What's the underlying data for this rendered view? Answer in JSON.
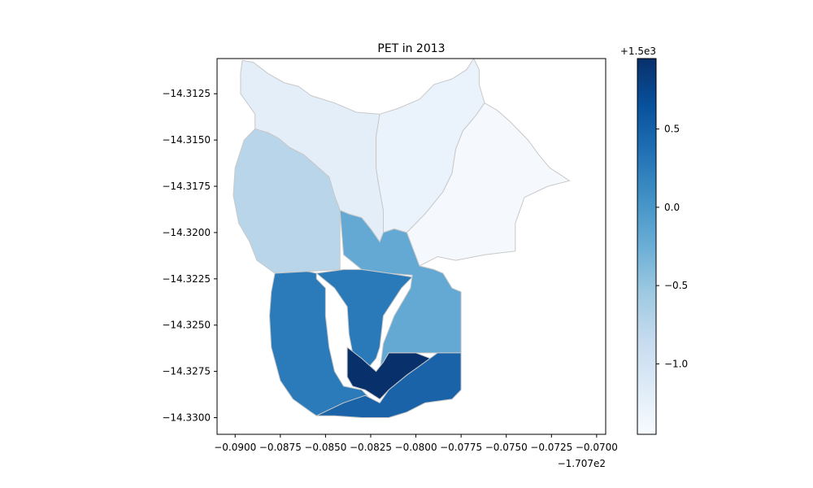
{
  "chart_data": {
    "type": "choropleth",
    "title": "PET in 2013",
    "xlabel": "",
    "ylabel": "",
    "x_offset_label": "−1.707e2",
    "colorbar_offset_label": "+1.5e3",
    "xlim": [
      -0.091,
      -0.0695
    ],
    "ylim": [
      -14.3309,
      -14.3106
    ],
    "x_ticks": [
      -0.09,
      -0.0875,
      -0.085,
      -0.0825,
      -0.08,
      -0.0775,
      -0.075,
      -0.0725,
      -0.07
    ],
    "x_tick_labels": [
      "−0.0900",
      "−0.0875",
      "−0.0850",
      "−0.0825",
      "−0.0800",
      "−0.0775",
      "−0.0750",
      "−0.0725",
      "−0.0700"
    ],
    "y_ticks": [
      -14.3125,
      -14.315,
      -14.3175,
      -14.32,
      -14.3225,
      -14.325,
      -14.3275,
      -14.33
    ],
    "y_tick_labels": [
      "−14.3125",
      "−14.3150",
      "−14.3175",
      "−14.3200",
      "−14.3225",
      "−14.3250",
      "−14.3275",
      "−14.3300"
    ],
    "colorbar": {
      "colormap": "Blues",
      "range": [
        -1.45,
        0.95
      ],
      "ticks": [
        0.5,
        0.0,
        -0.5,
        -1.0
      ],
      "tick_labels": [
        "0.5",
        "0.0",
        "−0.5",
        "−1.0"
      ]
    },
    "regions": [
      {
        "value": -1.25,
        "color": "#e3eef9",
        "boundary": [
          [
            -0.0896,
            -14.3107
          ],
          [
            -0.089,
            -14.3108
          ],
          [
            -0.0882,
            -14.3114
          ],
          [
            -0.0873,
            -14.3119
          ],
          [
            -0.0865,
            -14.3121
          ],
          [
            -0.0858,
            -14.3126
          ],
          [
            -0.0845,
            -14.313
          ],
          [
            -0.0833,
            -14.3135
          ],
          [
            -0.082,
            -14.3136
          ],
          [
            -0.0822,
            -14.3148
          ],
          [
            -0.0822,
            -14.3165
          ],
          [
            -0.0821,
            -14.3172
          ],
          [
            -0.0818,
            -14.3188
          ],
          [
            -0.0818,
            -14.32
          ],
          [
            -0.082,
            -14.3205
          ],
          [
            -0.0825,
            -14.3198
          ],
          [
            -0.083,
            -14.3192
          ],
          [
            -0.0837,
            -14.319
          ],
          [
            -0.0842,
            -14.3188
          ],
          [
            -0.0845,
            -14.318
          ],
          [
            -0.0848,
            -14.317
          ],
          [
            -0.0855,
            -14.3164
          ],
          [
            -0.0862,
            -14.3158
          ],
          [
            -0.087,
            -14.3154
          ],
          [
            -0.0876,
            -14.3149
          ],
          [
            -0.0882,
            -14.3146
          ],
          [
            -0.0889,
            -14.3144
          ],
          [
            -0.0889,
            -14.3136
          ],
          [
            -0.0897,
            -14.3125
          ],
          [
            -0.0897,
            -14.3114
          ]
        ]
      },
      {
        "value": -1.33,
        "color": "#eaf2fb",
        "boundary": [
          [
            -0.082,
            -14.3136
          ],
          [
            -0.081,
            -14.3133
          ],
          [
            -0.0798,
            -14.3128
          ],
          [
            -0.079,
            -14.312
          ],
          [
            -0.078,
            -14.3117
          ],
          [
            -0.0772,
            -14.3112
          ],
          [
            -0.0768,
            -14.3106
          ],
          [
            -0.0765,
            -14.3112
          ],
          [
            -0.0765,
            -14.312
          ],
          [
            -0.0762,
            -14.313
          ],
          [
            -0.0767,
            -14.3137
          ],
          [
            -0.0774,
            -14.3145
          ],
          [
            -0.0778,
            -14.3155
          ],
          [
            -0.078,
            -14.3168
          ],
          [
            -0.0785,
            -14.3178
          ],
          [
            -0.0795,
            -14.319
          ],
          [
            -0.0805,
            -14.32
          ],
          [
            -0.0812,
            -14.3198
          ],
          [
            -0.0818,
            -14.32
          ],
          [
            -0.0818,
            -14.3188
          ],
          [
            -0.0821,
            -14.3172
          ],
          [
            -0.0822,
            -14.3165
          ],
          [
            -0.0822,
            -14.3148
          ]
        ]
      },
      {
        "value": -1.42,
        "color": "#f5f9fe",
        "boundary": [
          [
            -0.0762,
            -14.313
          ],
          [
            -0.0755,
            -14.3134
          ],
          [
            -0.0748,
            -14.314
          ],
          [
            -0.0738,
            -14.315
          ],
          [
            -0.0732,
            -14.3158
          ],
          [
            -0.0726,
            -14.3165
          ],
          [
            -0.0715,
            -14.3172
          ],
          [
            -0.0727,
            -14.3175
          ],
          [
            -0.074,
            -14.3181
          ],
          [
            -0.0745,
            -14.3195
          ],
          [
            -0.0745,
            -14.321
          ],
          [
            -0.0762,
            -14.3212
          ],
          [
            -0.0778,
            -14.3215
          ],
          [
            -0.0788,
            -14.3213
          ],
          [
            -0.0798,
            -14.3218
          ],
          [
            -0.0805,
            -14.32
          ],
          [
            -0.0795,
            -14.319
          ],
          [
            -0.0785,
            -14.3178
          ],
          [
            -0.078,
            -14.3168
          ],
          [
            -0.0778,
            -14.3155
          ],
          [
            -0.0774,
            -14.3145
          ],
          [
            -0.0767,
            -14.3137
          ]
        ]
      },
      {
        "value": -0.85,
        "color": "#b8d5ea",
        "boundary": [
          [
            -0.0889,
            -14.3144
          ],
          [
            -0.0895,
            -14.315
          ],
          [
            -0.09,
            -14.3165
          ],
          [
            -0.0901,
            -14.318
          ],
          [
            -0.0898,
            -14.3195
          ],
          [
            -0.0892,
            -14.3205
          ],
          [
            -0.0888,
            -14.3215
          ],
          [
            -0.0878,
            -14.3222
          ],
          [
            -0.086,
            -14.3221
          ],
          [
            -0.0842,
            -14.322
          ],
          [
            -0.0842,
            -14.3205
          ],
          [
            -0.0842,
            -14.3188
          ],
          [
            -0.0845,
            -14.318
          ],
          [
            -0.0848,
            -14.317
          ],
          [
            -0.0855,
            -14.3164
          ],
          [
            -0.0862,
            -14.3158
          ],
          [
            -0.087,
            -14.3154
          ],
          [
            -0.0876,
            -14.3149
          ],
          [
            -0.0882,
            -14.3146
          ]
        ]
      },
      {
        "value": -0.3,
        "color": "#64a9d4",
        "boundary": [
          [
            -0.0842,
            -14.3188
          ],
          [
            -0.0837,
            -14.319
          ],
          [
            -0.083,
            -14.3192
          ],
          [
            -0.0825,
            -14.3198
          ],
          [
            -0.082,
            -14.3205
          ],
          [
            -0.0818,
            -14.32
          ],
          [
            -0.0812,
            -14.3198
          ],
          [
            -0.0805,
            -14.32
          ],
          [
            -0.0798,
            -14.3218
          ],
          [
            -0.079,
            -14.322
          ],
          [
            -0.0785,
            -14.3222
          ],
          [
            -0.078,
            -14.323
          ],
          [
            -0.0775,
            -14.3232
          ],
          [
            -0.0775,
            -14.3265
          ],
          [
            -0.0788,
            -14.3265
          ],
          [
            -0.0795,
            -14.3265
          ],
          [
            -0.0815,
            -14.3265
          ],
          [
            -0.082,
            -14.3275
          ],
          [
            -0.0818,
            -14.326
          ],
          [
            -0.0812,
            -14.3245
          ],
          [
            -0.0803,
            -14.323
          ],
          [
            -0.0802,
            -14.3223
          ],
          [
            -0.0815,
            -14.3222
          ],
          [
            -0.083,
            -14.322
          ],
          [
            -0.084,
            -14.3212
          ]
        ]
      },
      {
        "value": 0.1,
        "color": "#2b7bba",
        "boundary": [
          [
            -0.0878,
            -14.3222
          ],
          [
            -0.088,
            -14.3232
          ],
          [
            -0.0881,
            -14.3245
          ],
          [
            -0.088,
            -14.3262
          ],
          [
            -0.0875,
            -14.328
          ],
          [
            -0.0868,
            -14.329
          ],
          [
            -0.0858,
            -14.3297
          ],
          [
            -0.0855,
            -14.3299
          ],
          [
            -0.084,
            -14.3292
          ],
          [
            -0.0825,
            -14.329
          ],
          [
            -0.083,
            -14.3285
          ],
          [
            -0.084,
            -14.3283
          ],
          [
            -0.0845,
            -14.3275
          ],
          [
            -0.0848,
            -14.3262
          ],
          [
            -0.085,
            -14.3245
          ],
          [
            -0.085,
            -14.323
          ],
          [
            -0.0855,
            -14.3225
          ],
          [
            -0.0855,
            -14.3222
          ],
          [
            -0.086,
            -14.3221
          ]
        ]
      },
      {
        "value": 0.05,
        "color": "#2a7ab9",
        "boundary": [
          [
            -0.0855,
            -14.3222
          ],
          [
            -0.0845,
            -14.323
          ],
          [
            -0.0838,
            -14.324
          ],
          [
            -0.0837,
            -14.3255
          ],
          [
            -0.0835,
            -14.3265
          ],
          [
            -0.0828,
            -14.3275
          ],
          [
            -0.0822,
            -14.3268
          ],
          [
            -0.082,
            -14.3262
          ],
          [
            -0.0818,
            -14.3245
          ],
          [
            -0.0808,
            -14.323
          ],
          [
            -0.0802,
            -14.3224
          ],
          [
            -0.0815,
            -14.3222
          ],
          [
            -0.083,
            -14.322
          ],
          [
            -0.084,
            -14.322
          ]
        ]
      },
      {
        "value": 0.95,
        "color": "#08306b",
        "boundary": [
          [
            -0.0838,
            -14.3262
          ],
          [
            -0.083,
            -14.3268
          ],
          [
            -0.0822,
            -14.3275
          ],
          [
            -0.0818,
            -14.327
          ],
          [
            -0.0815,
            -14.3265
          ],
          [
            -0.08,
            -14.3265
          ],
          [
            -0.0792,
            -14.3268
          ],
          [
            -0.0805,
            -14.3277
          ],
          [
            -0.0815,
            -14.3285
          ],
          [
            -0.082,
            -14.329
          ],
          [
            -0.0828,
            -14.3285
          ],
          [
            -0.0835,
            -14.3283
          ],
          [
            -0.0838,
            -14.3278
          ]
        ]
      },
      {
        "value": 0.6,
        "color": "#1b63a9",
        "boundary": [
          [
            -0.0775,
            -14.3265
          ],
          [
            -0.0775,
            -14.3285
          ],
          [
            -0.078,
            -14.329
          ],
          [
            -0.0795,
            -14.3292
          ],
          [
            -0.0805,
            -14.3297
          ],
          [
            -0.0815,
            -14.33
          ],
          [
            -0.083,
            -14.33
          ],
          [
            -0.0845,
            -14.3299
          ],
          [
            -0.0855,
            -14.3299
          ],
          [
            -0.084,
            -14.3292
          ],
          [
            -0.0828,
            -14.3288
          ],
          [
            -0.082,
            -14.3292
          ],
          [
            -0.0815,
            -14.3285
          ],
          [
            -0.0805,
            -14.3277
          ],
          [
            -0.0795,
            -14.327
          ],
          [
            -0.0788,
            -14.3265
          ]
        ]
      }
    ]
  }
}
